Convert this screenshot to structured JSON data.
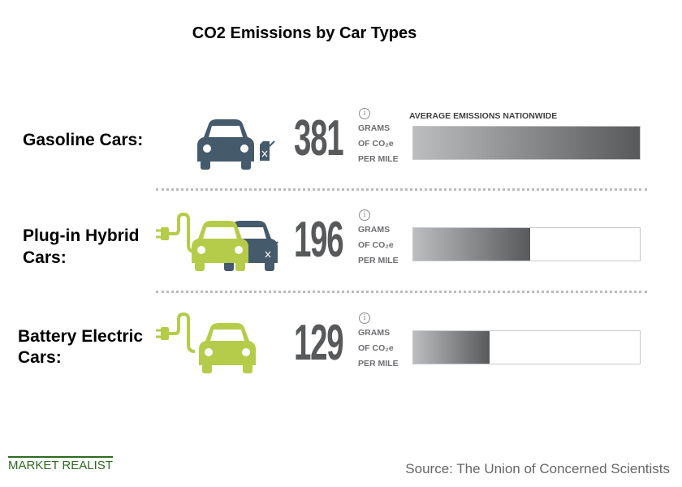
{
  "chart_data": {
    "type": "bar",
    "title": "CO2 Emissions by Car Types",
    "bar_header": "AVERAGE EMISSIONS NATIONWIDE",
    "unit_lines": [
      "GRAMS",
      "OF CO₂e",
      "PER MILE"
    ],
    "categories": [
      "Gasoline Cars:",
      "Plug-in Hybrid Cars:",
      "Battery Electric Cars:"
    ],
    "category_lines": [
      [
        "Gasoline Cars:"
      ],
      [
        "Plug-in Hybrid",
        "Cars:"
      ],
      [
        "Battery Electric",
        "Cars:"
      ]
    ],
    "values": [
      381,
      196,
      129
    ],
    "xlim": [
      0,
      381
    ],
    "icons": [
      "gasoline-car-icon",
      "plug-in-hybrid-car-icon",
      "electric-car-icon"
    ],
    "colors": {
      "gas": "#455a6b",
      "electric": "#b5cc4a",
      "bar_start": "#bcbdbf",
      "bar_end": "#58595b"
    }
  },
  "footer": {
    "logo": "MARKET REALIST",
    "source": "Source: The Union of Concerned Scientists"
  },
  "info_glyph": "i"
}
